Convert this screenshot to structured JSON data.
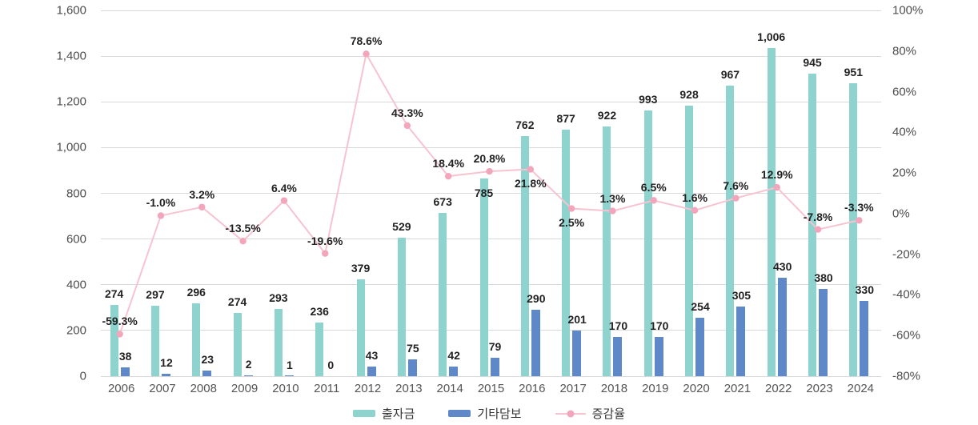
{
  "chart_data": {
    "type": "bar+line combo",
    "title": "",
    "categories": [
      "2006",
      "2007",
      "2008",
      "2009",
      "2010",
      "2011",
      "2012",
      "2013",
      "2014",
      "2015",
      "2016",
      "2017",
      "2018",
      "2019",
      "2020",
      "2021",
      "2022",
      "2023",
      "2024"
    ],
    "series": [
      {
        "name": "출자금",
        "type": "bar",
        "color": "#8ed3ce",
        "values": [
          274,
          297,
          296,
          274,
          293,
          236,
          379,
          529,
          673,
          785,
          762,
          877,
          922,
          993,
          928,
          967,
          1006,
          945,
          951
        ],
        "value_labels": [
          "274",
          "297",
          "296",
          "274",
          "293",
          "236",
          "379",
          "529",
          "673",
          "785",
          "762",
          "877",
          "922",
          "993",
          "928",
          "967",
          "1,006",
          "945",
          "951"
        ]
      },
      {
        "name": "기타담보",
        "type": "bar",
        "color": "#5f88c9",
        "values": [
          38,
          12,
          23,
          2,
          1,
          0,
          43,
          75,
          42,
          79,
          290,
          201,
          170,
          170,
          254,
          305,
          430,
          380,
          330
        ],
        "value_labels": [
          "38",
          "12",
          "23",
          "2",
          "1",
          "0",
          "43",
          "75",
          "42",
          "79",
          "290",
          "201",
          "170",
          "170",
          "254",
          "305",
          "430",
          "380",
          "330"
        ]
      },
      {
        "name": "증감율",
        "type": "line",
        "axis": "right",
        "line_color": "#f8c3d1",
        "point_color": "#f3a5bc",
        "values": [
          -59.3,
          -1.0,
          3.2,
          -13.5,
          6.4,
          -19.6,
          78.6,
          43.3,
          18.4,
          20.8,
          21.8,
          2.5,
          1.3,
          6.5,
          1.6,
          7.6,
          12.9,
          -7.8,
          -3.3
        ],
        "value_labels": [
          "-59.3%",
          "-1.0%",
          "3.2%",
          "-13.5%",
          "6.4%",
          "-19.6%",
          "78.6%",
          "43.3%",
          "18.4%",
          "20.8%",
          "21.8%",
          "2.5%",
          "1.3%",
          "6.5%",
          "1.6%",
          "7.6%",
          "12.9%",
          "-7.8%",
          "-3.3%"
        ],
        "labels_below_point": [
          10,
          11
        ]
      }
    ],
    "axis_left": {
      "min": 0,
      "max": 1600,
      "tick_step": 200,
      "tick_labels": [
        "0",
        "200",
        "400",
        "600",
        "800",
        "1,000",
        "1,200",
        "1,400",
        "1,600"
      ]
    },
    "axis_right": {
      "min": -80,
      "max": 100,
      "tick_step": 20,
      "tick_labels": [
        "-80%",
        "-60%",
        "-40%",
        "-20%",
        "0%",
        "20%",
        "40%",
        "60%",
        "80%",
        "100%"
      ]
    },
    "grid": true,
    "legend_position": "bottom"
  },
  "colors": {
    "grid": "#d9d9d9",
    "axis_text": "#4d4d4d",
    "value_text": "#222222"
  }
}
